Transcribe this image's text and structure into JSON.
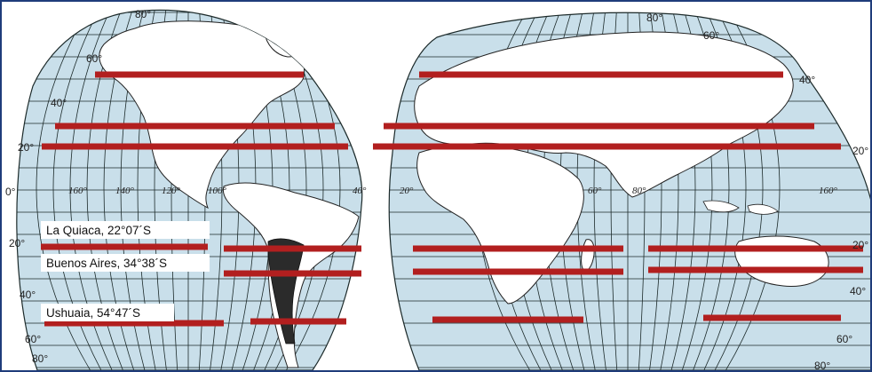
{
  "map": {
    "lat_labels_left": [
      "80°",
      "60°",
      "40°",
      "20°",
      "0°",
      "20°",
      "40°",
      "60°",
      "80°"
    ],
    "lat_labels_right": [
      "80°",
      "60°",
      "40°",
      "20°",
      "20°",
      "40°",
      "60°",
      "80°"
    ],
    "lon_labels": [
      "160°",
      "140°",
      "120°",
      "100°",
      "40°",
      "20°",
      "60°",
      "80°",
      "160°"
    ],
    "cities": [
      {
        "name": "La Quiaca",
        "latitude": "22°07´S"
      },
      {
        "name": "Buenos Aires",
        "latitude": "34°38´S"
      },
      {
        "name": "Ushuaia",
        "latitude": "54°47´S"
      }
    ],
    "city_labels": [
      "La Quiaca, 22°07´S",
      "Buenos Aires, 34°38´S",
      "Ushuaia, 54°47´S"
    ],
    "colors": {
      "ocean": "#c9dfea",
      "land": "#ffffff",
      "graticule": "#1c2a2a",
      "highlight": "#b21f1f",
      "argentina": "#2b2b2b",
      "frame": "#1f3c7a"
    }
  }
}
